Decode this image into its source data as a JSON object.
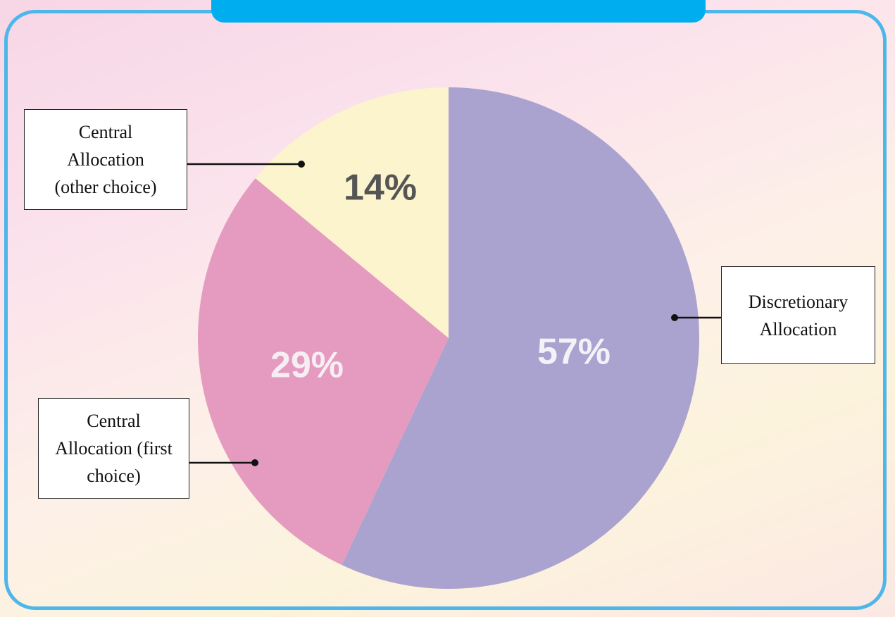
{
  "chart_data": {
    "type": "pie",
    "categories": [
      "Discretionary Allocation",
      "Central Allocation (first choice)",
      "Central Allocation (other choice)"
    ],
    "values": [
      57,
      29,
      14
    ],
    "value_labels": [
      "57%",
      "29%",
      "14%"
    ],
    "colors": [
      "#aaa3cf",
      "#e59bc0",
      "#fbf4cd"
    ],
    "label_colors": [
      "#f4f1f8",
      "#f7eef3",
      "#555555"
    ]
  }
}
